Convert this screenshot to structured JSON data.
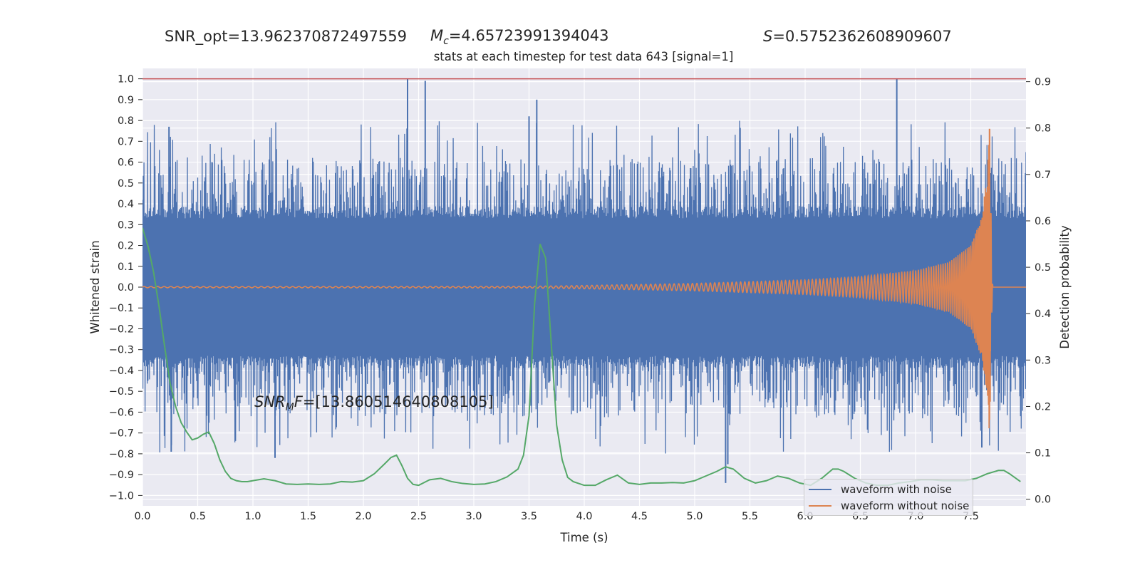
{
  "header": {
    "snr_opt": "SNR_opt=13.962370872497559",
    "mc_symbol": "M",
    "mc_sub": "c",
    "mc_value": "=4.65723991394043",
    "s_symbol": "S",
    "s_value": "=0.5752362608909607"
  },
  "annotation": {
    "snr_mf_symbol": "SNR",
    "snr_mf_sub": "M",
    "snr_mf_symbol2": "F",
    "snr_mf_value": "=[13.860514640808105]"
  },
  "chart_data": {
    "type": "line",
    "title": "stats at each timestep for test data 643 [signal=1]",
    "xlabel": "Time (s)",
    "ylabel": "Whitened strain",
    "ylabel_right": "Detection probability",
    "xlim": [
      0.0,
      8.0
    ],
    "ylim": [
      -1.05,
      1.05
    ],
    "ylim_right": [
      -0.0143,
      0.9286
    ],
    "x_ticks": [
      "0.0",
      "0.5",
      "1.0",
      "1.5",
      "2.0",
      "2.5",
      "3.0",
      "3.5",
      "4.0",
      "4.5",
      "5.0",
      "5.5",
      "6.0",
      "6.5",
      "7.0",
      "7.5"
    ],
    "y_ticks": [
      "1.0",
      "0.9",
      "0.8",
      "0.7",
      "0.6",
      "0.5",
      "0.4",
      "0.3",
      "0.2",
      "0.1",
      "0.0",
      "−0.1",
      "−0.2",
      "−0.3",
      "−0.4",
      "−0.5",
      "−0.6",
      "−0.7",
      "−0.8",
      "−0.9",
      "−1.0"
    ],
    "y_ticks_right": [
      "0.9",
      "0.8",
      "0.7",
      "0.6",
      "0.5",
      "0.4",
      "0.3",
      "0.2",
      "0.1",
      "0.0"
    ],
    "grid": true,
    "legend_position": "lower-right",
    "threshold": {
      "value": 1.0,
      "color": "#c44e52"
    },
    "series": [
      {
        "name": "waveform with noise",
        "color": "#4c72b0",
        "axis": "left",
        "description": "dense whitened noise, roughly within ±0.35 with spikes up to ±1.0",
        "spikes": [
          [
            0.24,
            0.77
          ],
          [
            0.26,
            -0.79
          ],
          [
            2.4,
            1.0
          ],
          [
            2.56,
            0.99
          ],
          [
            1.2,
            -0.82
          ],
          [
            3.5,
            0.82
          ],
          [
            3.57,
            0.9
          ],
          [
            5.28,
            -0.94
          ],
          [
            5.3,
            -0.85
          ],
          [
            6.83,
            1.0
          ],
          [
            7.6,
            -0.77
          ]
        ]
      },
      {
        "name": "waveform without noise",
        "color": "#dd8452",
        "axis": "left",
        "description": "chirp signal growing in amplitude and frequency, merger near t=7.67 s",
        "envelope": [
          [
            0.0,
            0.003
          ],
          [
            3.5,
            0.004
          ],
          [
            4.0,
            0.008
          ],
          [
            5.0,
            0.018
          ],
          [
            6.0,
            0.035
          ],
          [
            6.5,
            0.05
          ],
          [
            7.0,
            0.08
          ],
          [
            7.3,
            0.12
          ],
          [
            7.5,
            0.2
          ],
          [
            7.6,
            0.34
          ],
          [
            7.65,
            0.55
          ],
          [
            7.67,
            0.76
          ],
          [
            7.68,
            -0.55
          ],
          [
            7.7,
            0.0
          ],
          [
            8.0,
            0.0
          ]
        ]
      },
      {
        "name": "detection probability",
        "color": "#55a868",
        "axis": "right",
        "x": [
          0.0,
          0.05,
          0.1,
          0.15,
          0.2,
          0.25,
          0.3,
          0.35,
          0.4,
          0.45,
          0.5,
          0.55,
          0.6,
          0.65,
          0.7,
          0.75,
          0.8,
          0.85,
          0.9,
          0.95,
          1.0,
          1.1,
          1.2,
          1.3,
          1.4,
          1.5,
          1.6,
          1.7,
          1.8,
          1.9,
          2.0,
          2.1,
          2.2,
          2.25,
          2.3,
          2.35,
          2.4,
          2.45,
          2.5,
          2.55,
          2.6,
          2.7,
          2.8,
          2.9,
          3.0,
          3.1,
          3.2,
          3.3,
          3.4,
          3.45,
          3.5,
          3.55,
          3.6,
          3.65,
          3.7,
          3.75,
          3.8,
          3.85,
          3.9,
          4.0,
          4.1,
          4.2,
          4.3,
          4.4,
          4.5,
          4.6,
          4.7,
          4.8,
          4.9,
          5.0,
          5.1,
          5.2,
          5.28,
          5.35,
          5.45,
          5.55,
          5.65,
          5.75,
          5.85,
          5.95,
          6.05,
          6.15,
          6.2,
          6.25,
          6.3,
          6.35,
          6.45,
          6.55,
          6.65,
          6.75,
          6.85,
          6.95,
          7.05,
          7.15,
          7.25,
          7.35,
          7.45,
          7.55,
          7.65,
          7.75,
          7.8,
          7.85,
          7.95
        ],
        "y": [
          0.585,
          0.545,
          0.49,
          0.415,
          0.33,
          0.25,
          0.2,
          0.165,
          0.145,
          0.128,
          0.132,
          0.14,
          0.145,
          0.12,
          0.085,
          0.06,
          0.045,
          0.04,
          0.038,
          0.038,
          0.04,
          0.044,
          0.04,
          0.033,
          0.032,
          0.033,
          0.032,
          0.033,
          0.038,
          0.037,
          0.04,
          0.055,
          0.078,
          0.09,
          0.095,
          0.072,
          0.045,
          0.032,
          0.03,
          0.036,
          0.042,
          0.045,
          0.038,
          0.034,
          0.032,
          0.033,
          0.038,
          0.048,
          0.065,
          0.095,
          0.18,
          0.42,
          0.55,
          0.52,
          0.34,
          0.16,
          0.085,
          0.047,
          0.038,
          0.03,
          0.03,
          0.042,
          0.052,
          0.035,
          0.032,
          0.035,
          0.035,
          0.036,
          0.035,
          0.04,
          0.05,
          0.06,
          0.07,
          0.065,
          0.045,
          0.035,
          0.04,
          0.05,
          0.045,
          0.035,
          0.03,
          0.045,
          0.055,
          0.065,
          0.065,
          0.06,
          0.045,
          0.035,
          0.03,
          0.03,
          0.035,
          0.038,
          0.042,
          0.042,
          0.04,
          0.04,
          0.04,
          0.045,
          0.055,
          0.062,
          0.062,
          0.055,
          0.038
        ]
      }
    ]
  }
}
